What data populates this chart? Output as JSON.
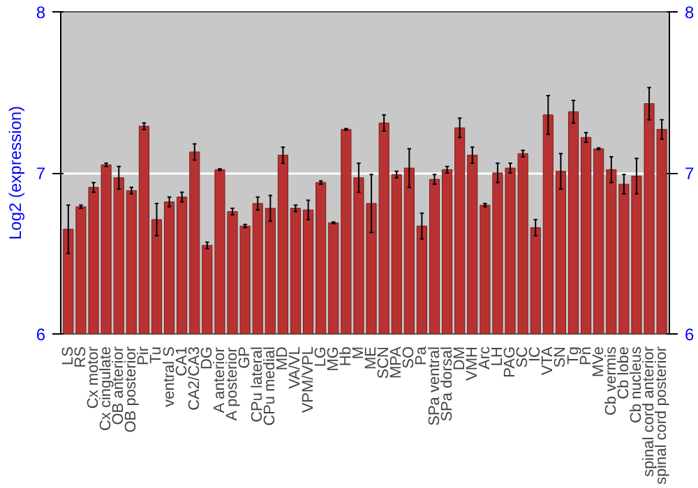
{
  "chart_data": {
    "type": "bar",
    "ylabel": "Log2 (expression)",
    "categories": [
      "LS",
      "RS",
      "Cx motor",
      "Cx cingulate",
      "OB anterior",
      "OB posterior",
      "Pir",
      "Tu",
      "ventral S",
      "CA1",
      "CA2/CA3",
      "DG",
      "A anterior",
      "A posterior",
      "GP",
      "CPu lateral",
      "CPu medial",
      "MD",
      "VA/VL",
      "VPM/VPL",
      "LG",
      "MG",
      "Hb",
      "M",
      "ME",
      "SCN",
      "MPA",
      "SO",
      "Pa",
      "SPa ventral",
      "SPa dorsal",
      "DM",
      "VMH",
      "Arc",
      "LH",
      "PAG",
      "SC",
      "IC",
      "VTA",
      "SN",
      "Tg",
      "Pn",
      "MVe",
      "Cb vermis",
      "Cb lobe",
      "Cb nucleus",
      "spinal cord anterior",
      "spinal cord posterior"
    ],
    "values": [
      6.65,
      6.79,
      6.91,
      7.05,
      6.97,
      6.89,
      7.29,
      6.71,
      6.82,
      6.85,
      7.13,
      6.55,
      7.02,
      6.76,
      6.67,
      6.81,
      6.78,
      7.11,
      6.78,
      6.77,
      6.94,
      6.69,
      7.27,
      6.97,
      6.81,
      7.31,
      6.99,
      7.03,
      6.67,
      6.96,
      7.02,
      7.28,
      7.11,
      6.8,
      7.0,
      7.03,
      7.12,
      6.66,
      7.36,
      7.01,
      7.38,
      7.22,
      7.15,
      7.02,
      6.93,
      6.98,
      7.43,
      7.27
    ],
    "errors": [
      0.15,
      0.01,
      0.03,
      0.01,
      0.07,
      0.02,
      0.02,
      0.1,
      0.03,
      0.03,
      0.05,
      0.02,
      0.005,
      0.02,
      0.01,
      0.04,
      0.08,
      0.05,
      0.02,
      0.06,
      0.01,
      0.005,
      0.005,
      0.09,
      0.18,
      0.05,
      0.02,
      0.12,
      0.08,
      0.03,
      0.02,
      0.06,
      0.05,
      0.01,
      0.06,
      0.03,
      0.02,
      0.05,
      0.12,
      0.11,
      0.07,
      0.03,
      0.005,
      0.08,
      0.06,
      0.11,
      0.1,
      0.06
    ],
    "color": "#b83232",
    "ylim": [
      6,
      8
    ],
    "yticks": [
      6,
      7,
      8
    ],
    "y2lim": [
      6,
      8
    ],
    "y2ticks": [
      6,
      7,
      8
    ],
    "grid": "y"
  }
}
